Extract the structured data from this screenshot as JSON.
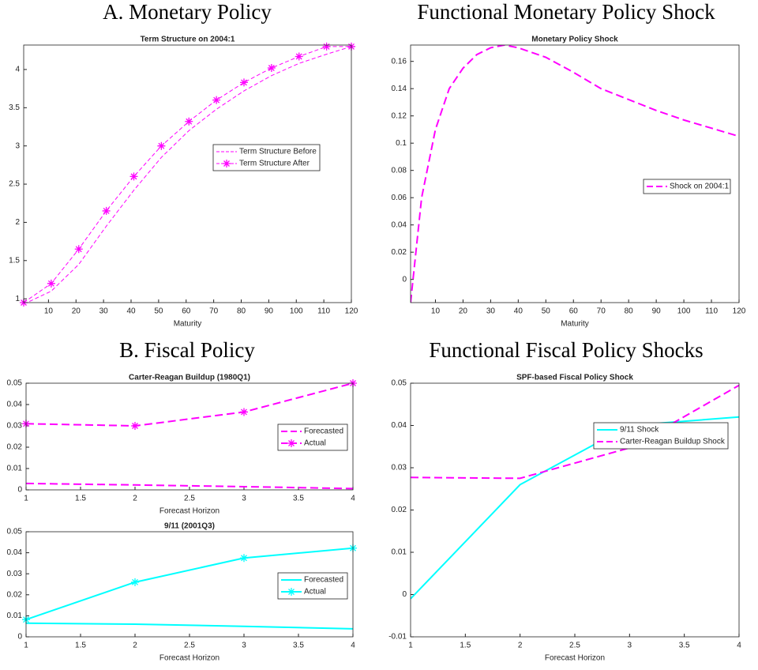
{
  "headings": [
    "A. Monetary Policy",
    "Functional Monetary Policy Shock",
    "B. Fiscal Policy",
    "Functional Fiscal Policy Shocks"
  ],
  "chart_data": [
    {
      "type": "line",
      "title": "Term Structure on 2004:1",
      "xlabel": "Maturity",
      "x": [
        1,
        11,
        21,
        31,
        41,
        51,
        61,
        71,
        81,
        91,
        101,
        111,
        120
      ],
      "xlim": [
        1,
        120
      ],
      "xticks": [
        10,
        20,
        30,
        40,
        50,
        60,
        70,
        80,
        90,
        100,
        110,
        120
      ],
      "ylim": [
        0.95,
        4.32
      ],
      "yticks": [
        1,
        1.5,
        2,
        2.5,
        3,
        3.5,
        4
      ],
      "legend": "center right",
      "series": [
        {
          "name": "Term Structure Before",
          "color": "#ff00ff",
          "linestyle": "--",
          "linewidth": 1,
          "values": [
            0.93,
            1.1,
            1.45,
            1.95,
            2.42,
            2.85,
            3.2,
            3.48,
            3.72,
            3.92,
            4.08,
            4.2,
            4.3
          ]
        },
        {
          "name": "Term Structure After",
          "color": "#ff00ff",
          "linestyle": "--",
          "linewidth": 1,
          "marker": "*",
          "values": [
            0.95,
            1.2,
            1.65,
            2.15,
            2.6,
            3.0,
            3.32,
            3.6,
            3.83,
            4.02,
            4.17,
            4.3,
            4.3
          ]
        }
      ]
    },
    {
      "type": "line",
      "title": "Monetary Policy Shock",
      "xlabel": "Maturity",
      "x": [
        1,
        5,
        10,
        15,
        20,
        25,
        30,
        35,
        40,
        50,
        60,
        70,
        80,
        90,
        100,
        110,
        120
      ],
      "xlim": [
        1,
        120
      ],
      "xticks": [
        10,
        20,
        30,
        40,
        50,
        60,
        70,
        80,
        90,
        100,
        110,
        120
      ],
      "ylim": [
        -0.017,
        0.172
      ],
      "yticks": [
        0,
        0.02,
        0.04,
        0.06,
        0.08,
        0.1,
        0.12,
        0.14,
        0.16
      ],
      "legend": "center right",
      "series": [
        {
          "name": "Shock on 2004:1",
          "color": "#ff00ff",
          "linestyle": "--",
          "linewidth": 2,
          "values": [
            -0.017,
            0.06,
            0.11,
            0.14,
            0.155,
            0.165,
            0.17,
            0.172,
            0.17,
            0.163,
            0.152,
            0.14,
            0.132,
            0.124,
            0.117,
            0.111,
            0.105
          ]
        }
      ]
    },
    {
      "type": "line",
      "title": "Carter-Reagan Buildup (1980Q1)",
      "xlabel": "Forecast Horizon",
      "x": [
        1,
        2,
        3,
        4
      ],
      "xlim": [
        1,
        4
      ],
      "xticks": [
        1,
        1.5,
        2,
        2.5,
        3,
        3.5,
        4
      ],
      "ylim": [
        0,
        0.05
      ],
      "yticks": [
        0,
        0.01,
        0.02,
        0.03,
        0.04,
        0.05
      ],
      "legend": "center right",
      "series": [
        {
          "name": "Forecasted",
          "color": "#ff00ff",
          "linestyle": "--",
          "linewidth": 2,
          "values": [
            0.003,
            0.0023,
            0.0015,
            0.0006
          ]
        },
        {
          "name": "Actual",
          "color": "#ff00ff",
          "linestyle": "--",
          "linewidth": 2,
          "marker": "*",
          "values": [
            0.031,
            0.03,
            0.0365,
            0.05
          ]
        }
      ]
    },
    {
      "type": "line",
      "title": "9/11 (2001Q3)",
      "xlabel": "Forecast Horizon",
      "x": [
        1,
        2,
        3,
        4
      ],
      "xlim": [
        1,
        4
      ],
      "xticks": [
        1,
        1.5,
        2,
        2.5,
        3,
        3.5,
        4
      ],
      "ylim": [
        0,
        0.05
      ],
      "yticks": [
        0,
        0.01,
        0.02,
        0.03,
        0.04,
        0.05
      ],
      "legend": "center right",
      "series": [
        {
          "name": "Forecasted",
          "color": "#00ffff",
          "linestyle": "-",
          "linewidth": 2,
          "values": [
            0.0065,
            0.006,
            0.005,
            0.0038
          ]
        },
        {
          "name": "Actual",
          "color": "#00ffff",
          "linestyle": "-",
          "linewidth": 2,
          "marker": "*",
          "values": [
            0.0082,
            0.026,
            0.0375,
            0.0422
          ]
        }
      ]
    },
    {
      "type": "line",
      "title": "SPF-based Fiscal Policy Shock",
      "xlabel": "Forecast Horizon",
      "x": [
        1,
        2,
        3,
        4
      ],
      "xlim": [
        1,
        4
      ],
      "xticks": [
        1,
        1.5,
        2,
        2.5,
        3,
        3.5,
        4
      ],
      "ylim": [
        -0.01,
        0.05
      ],
      "yticks": [
        -0.01,
        0,
        0.01,
        0.02,
        0.03,
        0.04,
        0.05
      ],
      "legend": "center right",
      "series": [
        {
          "name": "9/11 Shock",
          "color": "#00ffff",
          "linestyle": "-",
          "linewidth": 2,
          "values": [
            -0.001,
            0.026,
            0.04,
            0.042
          ]
        },
        {
          "name": "Carter-Reagan Buildup Shock",
          "color": "#ff00ff",
          "linestyle": "--",
          "linewidth": 2,
          "values": [
            0.0277,
            0.0275,
            0.0347,
            0.0495
          ]
        }
      ]
    }
  ]
}
